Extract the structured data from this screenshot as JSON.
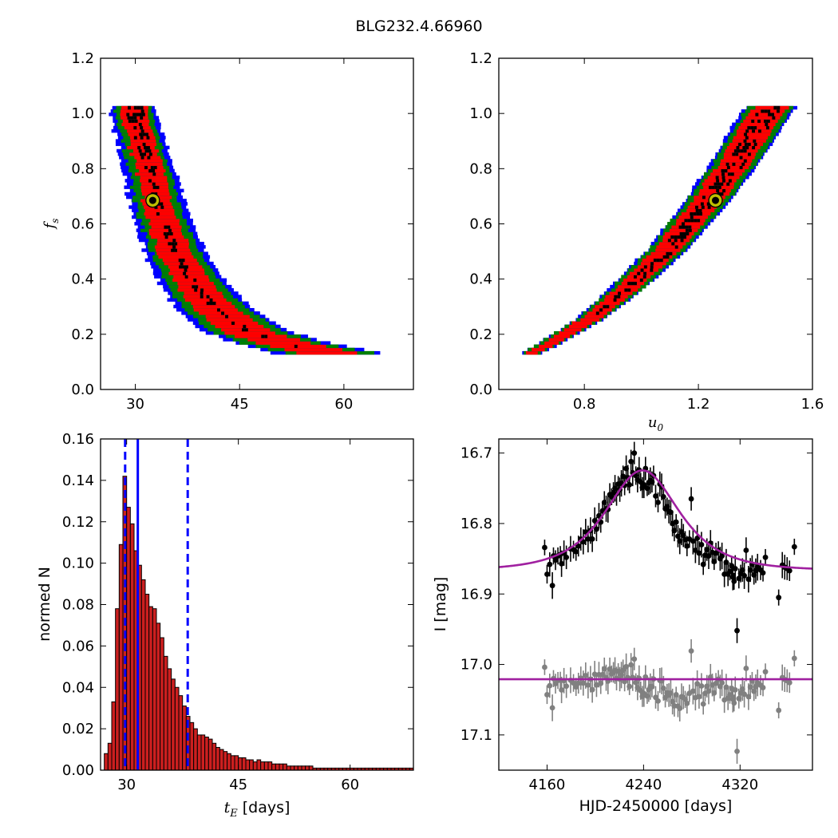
{
  "figure_title": "BLG232.4.66960",
  "colors": {
    "blue": "#0000ff",
    "green": "#007f00",
    "red": "#ff0000",
    "black": "#000000",
    "marker_fill": "#bfbf00",
    "model": "#a020a0",
    "residuals": "#808080",
    "hist_bar": "#cc1f1f"
  },
  "chart_data": [
    {
      "id": "fs_vs_tE",
      "type": "heatmap",
      "ylabel_tex": "f",
      "ylabel_sub": "s",
      "xlim": [
        25,
        70
      ],
      "ylim": [
        0.0,
        1.2
      ],
      "xticks": [
        "30",
        "45",
        "60"
      ],
      "xtick_values": [
        30,
        45,
        60
      ],
      "yticks": [
        "0.0",
        "0.2",
        "0.4",
        "0.6",
        "0.8",
        "1.0",
        "1.2"
      ],
      "ytick_values": [
        0.0,
        0.2,
        0.4,
        0.6,
        0.8,
        1.0,
        1.2
      ],
      "confidence_region": {
        "fs": [
          1.02,
          1.0,
          0.95,
          0.9,
          0.85,
          0.8,
          0.75,
          0.7,
          0.65,
          0.6,
          0.55,
          0.5,
          0.45,
          0.4,
          0.35,
          0.3,
          0.25,
          0.2,
          0.16,
          0.12
        ],
        "t_center": [
          29.6,
          29.8,
          30.2,
          30.8,
          31.4,
          32.0,
          32.5,
          32.9,
          33.4,
          34.0,
          34.8,
          35.7,
          36.6,
          37.8,
          39.2,
          41.0,
          43.4,
          46.5,
          51.5,
          59.0
        ],
        "half_width_black": [
          1.2,
          1.2,
          1.0,
          0.9,
          0.8,
          0.7,
          0.6,
          0.6,
          0.6,
          0.6,
          0.6,
          0.6,
          0.6,
          0.6,
          0.6,
          0.5,
          0.5,
          0.5,
          0.4,
          0.0
        ],
        "half_width_red": [
          2.0,
          2.0,
          1.9,
          1.9,
          1.9,
          2.0,
          2.0,
          2.0,
          2.1,
          2.2,
          2.3,
          2.4,
          2.5,
          2.6,
          2.8,
          3.0,
          3.3,
          3.6,
          4.0,
          4.4
        ],
        "half_width_green": [
          2.6,
          2.7,
          2.7,
          2.7,
          2.8,
          2.9,
          3.0,
          3.1,
          3.2,
          3.3,
          3.4,
          3.5,
          3.7,
          3.9,
          4.2,
          4.5,
          4.9,
          5.3,
          5.8,
          6.6
        ],
        "half_width_blue": [
          3.0,
          3.3,
          3.4,
          3.5,
          3.6,
          3.7,
          3.9,
          4.0,
          4.1,
          4.2,
          4.3,
          4.4,
          4.6,
          4.8,
          5.1,
          5.4,
          5.8,
          6.3,
          6.9,
          8.0
        ]
      },
      "best_fit": {
        "x": 32.5,
        "y": 0.685
      }
    },
    {
      "id": "fs_vs_u0",
      "type": "heatmap",
      "xlabel_tex": "u",
      "xlabel_sub": "0",
      "xlim": [
        0.5,
        1.6
      ],
      "ylim": [
        0.0,
        1.2
      ],
      "xticks": [
        "0.8",
        "1.2",
        "1.6"
      ],
      "xtick_values": [
        0.8,
        1.2,
        1.6
      ],
      "yticks": [
        "0.0",
        "0.2",
        "0.4",
        "0.6",
        "0.8",
        "1.0",
        "1.2"
      ],
      "ytick_values": [
        0.0,
        0.2,
        0.4,
        0.6,
        0.8,
        1.0,
        1.2
      ],
      "confidence_region": {
        "fs": [
          0.12,
          0.15,
          0.2,
          0.25,
          0.3,
          0.35,
          0.4,
          0.45,
          0.5,
          0.55,
          0.6,
          0.65,
          0.7,
          0.75,
          0.8,
          0.85,
          0.9,
          0.95,
          1.0,
          1.02
        ],
        "u_center": [
          0.6,
          0.66,
          0.74,
          0.82,
          0.88,
          0.94,
          0.99,
          1.04,
          1.09,
          1.13,
          1.17,
          1.21,
          1.25,
          1.28,
          1.32,
          1.35,
          1.38,
          1.41,
          1.44,
          1.46
        ],
        "half_width_black": [
          0.0,
          0.0,
          0.0,
          0.0,
          0.01,
          0.015,
          0.02,
          0.02,
          0.025,
          0.025,
          0.025,
          0.025,
          0.03,
          0.03,
          0.03,
          0.03,
          0.03,
          0.035,
          0.035,
          0.035
        ],
        "half_width_red": [
          0.02,
          0.025,
          0.03,
          0.035,
          0.035,
          0.04,
          0.04,
          0.045,
          0.045,
          0.05,
          0.05,
          0.05,
          0.055,
          0.055,
          0.055,
          0.055,
          0.06,
          0.06,
          0.06,
          0.06
        ],
        "half_width_green": [
          0.03,
          0.035,
          0.04,
          0.045,
          0.05,
          0.055,
          0.06,
          0.06,
          0.065,
          0.065,
          0.07,
          0.07,
          0.075,
          0.075,
          0.075,
          0.08,
          0.08,
          0.08,
          0.08,
          0.08
        ],
        "half_width_blue": [
          0.035,
          0.04,
          0.045,
          0.05,
          0.055,
          0.06,
          0.065,
          0.07,
          0.07,
          0.075,
          0.075,
          0.08,
          0.08,
          0.085,
          0.085,
          0.085,
          0.09,
          0.09,
          0.09,
          0.09
        ]
      },
      "best_fit": {
        "x": 1.26,
        "y": 0.685
      }
    },
    {
      "id": "tE_histogram",
      "type": "bar",
      "ylabel": "normed N",
      "xlabel_tex": "t",
      "xlabel_sub": "E",
      "xlabel_suffix": "[days]",
      "xlim": [
        26.5,
        68.5
      ],
      "ylim": [
        0.0,
        0.16
      ],
      "xticks": [
        "30",
        "45",
        "60"
      ],
      "xtick_values": [
        30,
        45,
        60
      ],
      "yticks": [
        "0.00",
        "0.02",
        "0.04",
        "0.06",
        "0.08",
        "0.10",
        "0.12",
        "0.14",
        "0.16"
      ],
      "ytick_values": [
        0.0,
        0.02,
        0.04,
        0.06,
        0.08,
        0.1,
        0.12,
        0.14,
        0.16
      ],
      "bin_start": 27.0,
      "bin_width": 0.5,
      "values": [
        0.008,
        0.013,
        0.033,
        0.078,
        0.109,
        0.142,
        0.127,
        0.119,
        0.106,
        0.099,
        0.092,
        0.085,
        0.079,
        0.078,
        0.071,
        0.064,
        0.055,
        0.049,
        0.044,
        0.04,
        0.036,
        0.031,
        0.026,
        0.023,
        0.02,
        0.017,
        0.017,
        0.016,
        0.015,
        0.013,
        0.011,
        0.01,
        0.009,
        0.008,
        0.007,
        0.007,
        0.006,
        0.006,
        0.005,
        0.005,
        0.004,
        0.005,
        0.004,
        0.004,
        0.004,
        0.003,
        0.003,
        0.003,
        0.003,
        0.002,
        0.002,
        0.002,
        0.002,
        0.002,
        0.002,
        0.002,
        0.001,
        0.001,
        0.001,
        0.001,
        0.001,
        0.001,
        0.001,
        0.001,
        0.001,
        0.001,
        0.001,
        0.001,
        0.001,
        0.001,
        0.001,
        0.001,
        0.001,
        0.001,
        0.001,
        0.001,
        0.001,
        0.001,
        0.001,
        0.001,
        0.001,
        0.001,
        0.001
      ],
      "median_line": 31.5,
      "interval_lines": [
        29.8,
        38.2
      ]
    },
    {
      "id": "light_curve",
      "type": "scatter",
      "ylabel": "I [mag]",
      "xlabel": "HJD-2450000 [days]",
      "xlim": [
        4120,
        4380
      ],
      "ylim": [
        17.15,
        16.68
      ],
      "y_inverted": true,
      "xticks": [
        "4160",
        "4240",
        "4320"
      ],
      "xtick_values": [
        4160,
        4240,
        4320
      ],
      "yticks": [
        "16.7",
        "16.8",
        "16.9",
        "17.0",
        "17.1"
      ],
      "ytick_values": [
        16.7,
        16.8,
        16.9,
        17.0,
        17.1
      ],
      "model": {
        "t0": 4239,
        "tE": 32.5,
        "u0": 1.26,
        "fs": 0.685,
        "I_base": 16.867
      },
      "residual_offset": 17.021,
      "observations": [
        [
          4158.0,
          16.834
        ],
        [
          4160.0,
          16.872
        ],
        [
          4162.2,
          16.858
        ],
        [
          4164.4,
          16.888
        ],
        [
          4165.3,
          16.846
        ],
        [
          4167.0,
          16.852
        ],
        [
          4169.0,
          16.846
        ],
        [
          4171.0,
          16.844
        ],
        [
          4172.0,
          16.857
        ],
        [
          4174.0,
          16.842
        ],
        [
          4176.0,
          16.848
        ],
        [
          4179.5,
          16.836
        ],
        [
          4181.9,
          16.837
        ],
        [
          4184.0,
          16.84
        ],
        [
          4186.0,
          16.832
        ],
        [
          4188.0,
          16.822
        ],
        [
          4190.0,
          16.826
        ],
        [
          4192.0,
          16.812
        ],
        [
          4194.0,
          16.822
        ],
        [
          4196.0,
          16.81
        ],
        [
          4197.5,
          16.822
        ],
        [
          4199.5,
          16.796
        ],
        [
          4201.0,
          16.808
        ],
        [
          4203.0,
          16.789
        ],
        [
          4204.5,
          16.798
        ],
        [
          4206.0,
          16.782
        ],
        [
          4207.5,
          16.77
        ],
        [
          4209.0,
          16.779
        ],
        [
          4210.5,
          16.78
        ],
        [
          4212.0,
          16.759
        ],
        [
          4213.5,
          16.762
        ],
        [
          4215.0,
          16.756
        ],
        [
          4216.3,
          16.75
        ],
        [
          4217.6,
          16.758
        ],
        [
          4219.0,
          16.744
        ],
        [
          4220.3,
          16.752
        ],
        [
          4221.6,
          16.743
        ],
        [
          4223.0,
          16.733
        ],
        [
          4224.3,
          16.746
        ],
        [
          4225.6,
          16.722
        ],
        [
          4227.0,
          16.735
        ],
        [
          4228.3,
          16.745
        ],
        [
          4229.6,
          16.712
        ],
        [
          4231.0,
          16.728
        ],
        [
          4232.3,
          16.7
        ],
        [
          4233.6,
          16.732
        ],
        [
          4235.0,
          16.738
        ],
        [
          4236.3,
          16.724
        ],
        [
          4237.6,
          16.741
        ],
        [
          4239.0,
          16.749
        ],
        [
          4240.3,
          16.745
        ],
        [
          4241.6,
          16.722
        ],
        [
          4243.0,
          16.75
        ],
        [
          4244.3,
          16.742
        ],
        [
          4245.6,
          16.739
        ],
        [
          4247.0,
          16.741
        ],
        [
          4248.3,
          16.732
        ],
        [
          4250.0,
          16.761
        ],
        [
          4252.0,
          16.77
        ],
        [
          4253.5,
          16.744
        ],
        [
          4255.0,
          16.748
        ],
        [
          4256.5,
          16.762
        ],
        [
          4258.0,
          16.779
        ],
        [
          4259.5,
          16.776
        ],
        [
          4261.0,
          16.783
        ],
        [
          4262.5,
          16.784
        ],
        [
          4264.0,
          16.8
        ],
        [
          4265.5,
          16.81
        ],
        [
          4267.0,
          16.798
        ],
        [
          4268.5,
          16.818
        ],
        [
          4270.0,
          16.825
        ],
        [
          4271.5,
          16.812
        ],
        [
          4273.0,
          16.817
        ],
        [
          4274.5,
          16.823
        ],
        [
          4276.0,
          16.832
        ],
        [
          4278.0,
          16.822
        ],
        [
          4279.5,
          16.765
        ],
        [
          4281.0,
          16.825
        ],
        [
          4283.0,
          16.838
        ],
        [
          4284.5,
          16.821
        ],
        [
          4286.0,
          16.842
        ],
        [
          4288.0,
          16.83
        ],
        [
          4289.5,
          16.858
        ],
        [
          4291.0,
          16.845
        ],
        [
          4292.5,
          16.837
        ],
        [
          4294.0,
          16.846
        ],
        [
          4295.5,
          16.828
        ],
        [
          4297.0,
          16.841
        ],
        [
          4298.5,
          16.854
        ],
        [
          4300.0,
          16.842
        ],
        [
          4302.0,
          16.838
        ],
        [
          4303.5,
          16.85
        ],
        [
          4305.0,
          16.846
        ],
        [
          4307.0,
          16.872
        ],
        [
          4308.5,
          16.855
        ],
        [
          4310.0,
          16.872
        ],
        [
          4311.5,
          16.868
        ],
        [
          4313.0,
          16.86
        ],
        [
          4314.0,
          16.876
        ],
        [
          4315.0,
          16.882
        ],
        [
          4316.0,
          16.864
        ],
        [
          4317.5,
          16.952
        ],
        [
          4319.0,
          16.878
        ],
        [
          4320.5,
          16.871
        ],
        [
          4322.0,
          16.866
        ],
        [
          4323.5,
          16.874
        ],
        [
          4325.0,
          16.838
        ],
        [
          4327.0,
          16.879
        ],
        [
          4328.5,
          16.866
        ],
        [
          4330.0,
          16.858
        ],
        [
          4331.5,
          16.873
        ],
        [
          4333.0,
          16.867
        ],
        [
          4334.5,
          16.862
        ],
        [
          4337.0,
          16.866
        ],
        [
          4339.0,
          16.87
        ],
        [
          4341.0,
          16.848
        ],
        [
          4352.0,
          16.905
        ],
        [
          4355.0,
          16.859
        ],
        [
          4357.0,
          16.862
        ],
        [
          4359.0,
          16.864
        ],
        [
          4361.0,
          16.867
        ],
        [
          4365.0,
          16.833
        ]
      ]
    }
  ]
}
